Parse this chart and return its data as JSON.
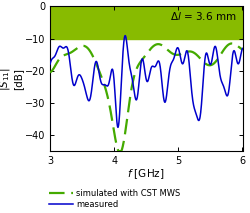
{
  "xlabel": "f [GHz]",
  "ylabel_line1": "|S_{11}|",
  "ylabel_line2": "[dB]",
  "xlim": [
    3,
    6
  ],
  "ylim": [
    -45,
    0
  ],
  "yticks": [
    0,
    -10,
    -20,
    -30,
    -40
  ],
  "xticks": [
    3,
    4,
    5,
    6
  ],
  "annotation": "Δl = 3.6 mm",
  "green_region_ymin": -10,
  "green_region_ymax": 0,
  "green_color": "#88bb00",
  "sim_color": "#44aa00",
  "meas_color": "#0000cc",
  "legend_sim": "simulated with CST MWS",
  "legend_meas": "measured",
  "background_color": "#ffffff"
}
